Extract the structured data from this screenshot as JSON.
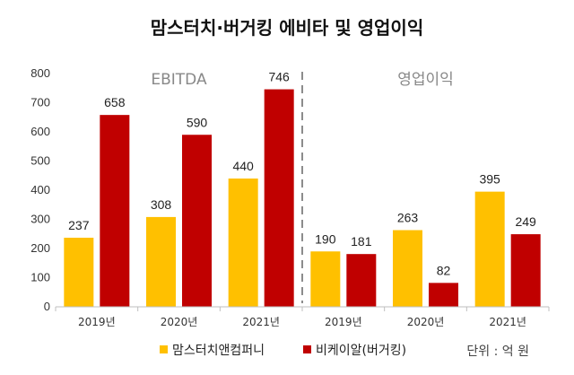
{
  "chart_data": {
    "type": "bar",
    "title": "맘스터치·버거킹 에비타 및 영업이익",
    "groups": [
      {
        "label": "EBITDA",
        "categories": [
          "2019년",
          "2020년",
          "2021년"
        ]
      },
      {
        "label": "영업이익",
        "categories": [
          "2019년",
          "2020년",
          "2021년"
        ]
      }
    ],
    "series": [
      {
        "name": "맘스터치앤컴퍼니",
        "color": "#FFC000",
        "values": [
          237,
          308,
          440,
          190,
          263,
          395
        ]
      },
      {
        "name": "비케이알(버거킹)",
        "color": "#C00000",
        "values": [
          658,
          590,
          746,
          181,
          82,
          249
        ]
      }
    ],
    "ylim": [
      0,
      800
    ],
    "yticks": [
      0,
      100,
      200,
      300,
      400,
      500,
      600,
      700,
      800
    ],
    "unit_label": "단위 : 억 원",
    "legend_position": "bottom",
    "grid": false
  }
}
